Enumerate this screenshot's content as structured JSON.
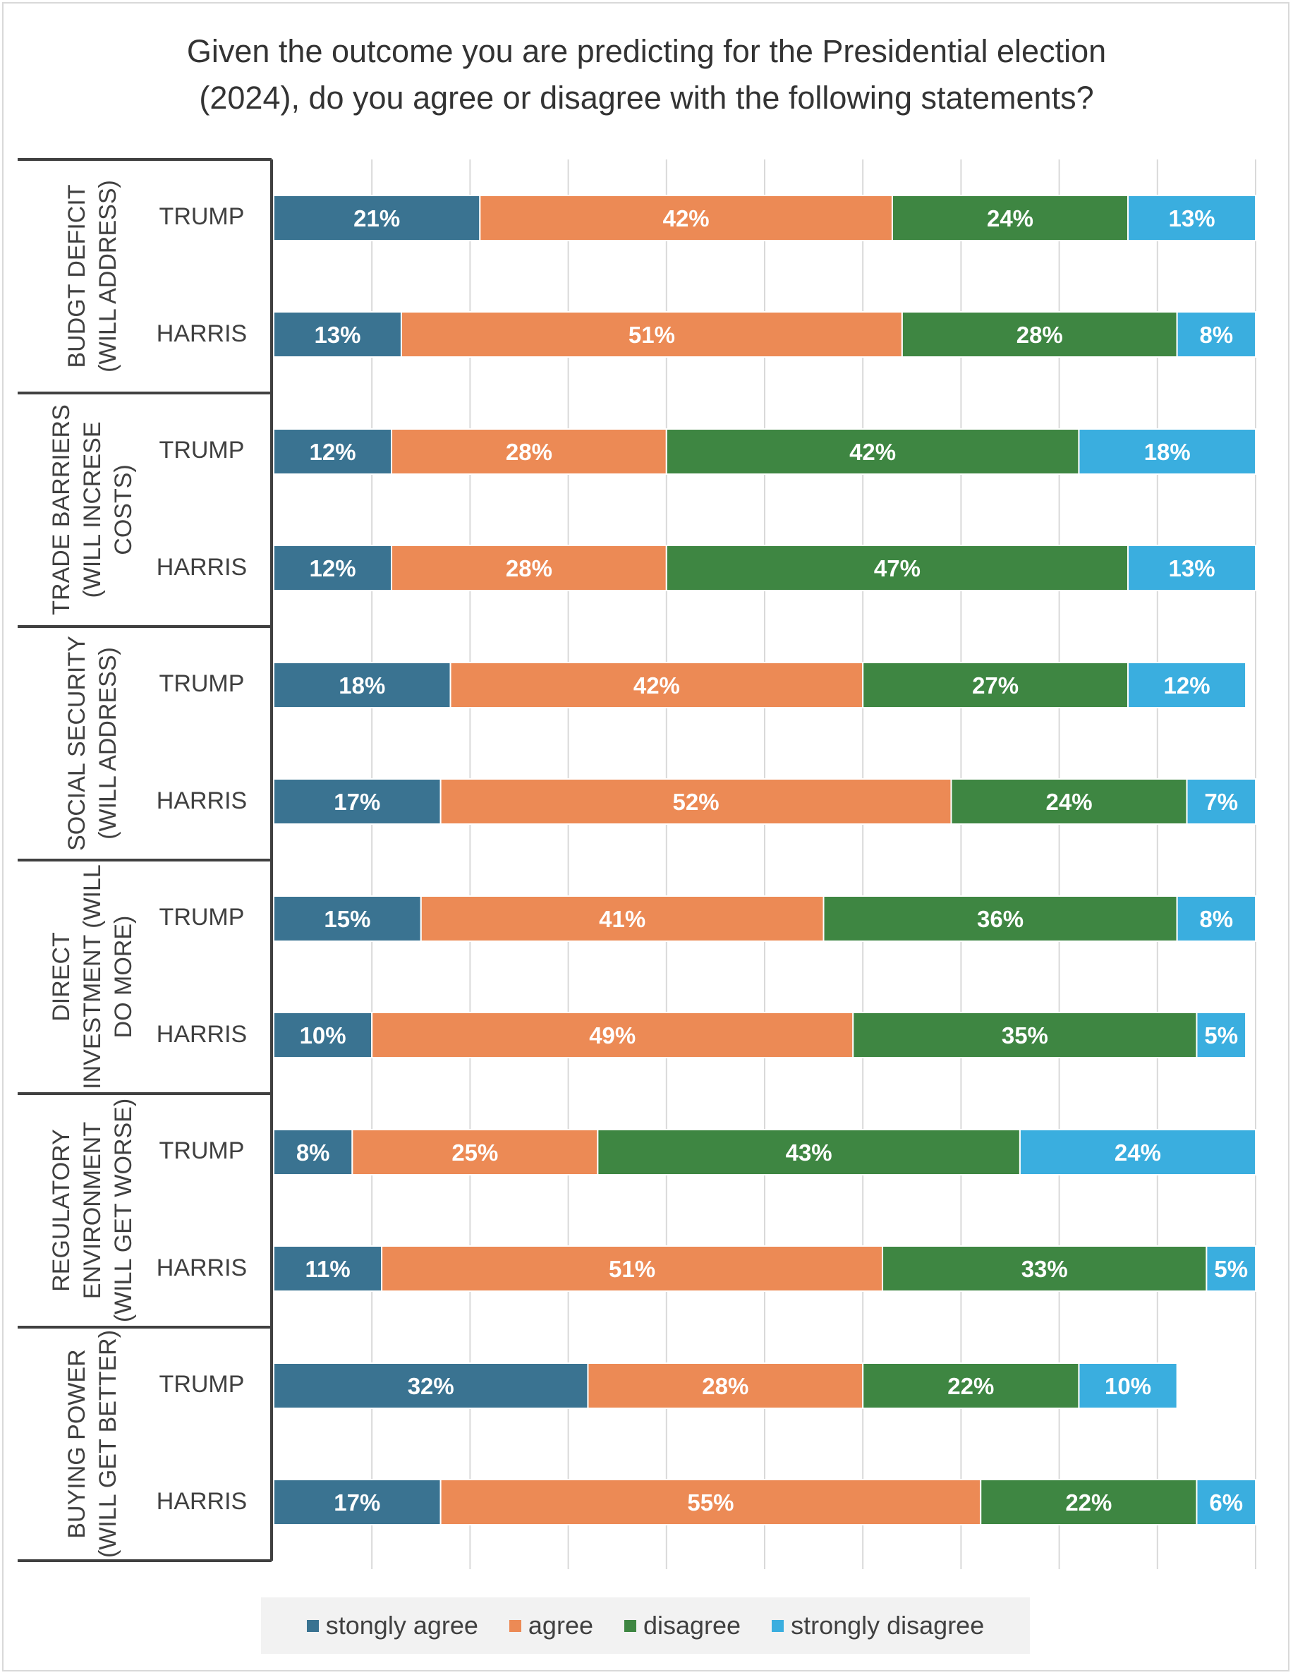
{
  "chart_data": {
    "type": "bar",
    "orientation": "horizontal",
    "stacked": true,
    "title_lines": [
      "Given the outcome you are predicting for the Presidential election",
      "(2024), do you agree or disagree with the following statements?"
    ],
    "xlim": [
      0,
      100
    ],
    "x_gridlines_at": [
      0,
      10,
      20,
      30,
      40,
      50,
      60,
      70,
      80,
      90,
      100
    ],
    "grid": true,
    "legend_position": "bottom",
    "series": [
      {
        "name": "stongly agree",
        "color": "#3a7391"
      },
      {
        "name": "agree",
        "color": "#ec8a55"
      },
      {
        "name": "disagree",
        "color": "#3e8642"
      },
      {
        "name": "strongly disagree",
        "color": "#3aaedf"
      }
    ],
    "groups": [
      {
        "label_lines": [
          "BUDGT DEFICIT",
          "(WILL ADDRESS)"
        ],
        "rows": [
          {
            "label": "TRUMP",
            "values": [
              21,
              42,
              24,
              13
            ]
          },
          {
            "label": "HARRIS",
            "values": [
              13,
              51,
              28,
              8
            ]
          }
        ]
      },
      {
        "label_lines": [
          "TRADE BARRIERS",
          "(WILL INCRESE",
          "COSTS)"
        ],
        "rows": [
          {
            "label": "TRUMP",
            "values": [
              12,
              28,
              42,
              18
            ]
          },
          {
            "label": "HARRIS",
            "values": [
              12,
              28,
              47,
              13
            ]
          }
        ]
      },
      {
        "label_lines": [
          "SOCIAL SECURITY",
          "(WILL ADDRESS)"
        ],
        "rows": [
          {
            "label": "TRUMP",
            "values": [
              18,
              42,
              27,
              12
            ]
          },
          {
            "label": "HARRIS",
            "values": [
              17,
              52,
              24,
              7
            ]
          }
        ]
      },
      {
        "label_lines": [
          "DIRECT",
          "INVESTMENT (WILL",
          "DO MORE)"
        ],
        "rows": [
          {
            "label": "TRUMP",
            "values": [
              15,
              41,
              36,
              8
            ]
          },
          {
            "label": "HARRIS",
            "values": [
              10,
              49,
              35,
              5
            ]
          }
        ]
      },
      {
        "label_lines": [
          "REGULATORY",
          "ENVIRONMENT",
          "(WILL GET WORSE)"
        ],
        "rows": [
          {
            "label": "TRUMP",
            "values": [
              8,
              25,
              43,
              24
            ]
          },
          {
            "label": "HARRIS",
            "values": [
              11,
              51,
              33,
              5
            ]
          }
        ]
      },
      {
        "label_lines": [
          "BUYING POWER",
          "(WILL GET BETTER)"
        ],
        "rows": [
          {
            "label": "TRUMP",
            "values": [
              32,
              28,
              22,
              10
            ]
          },
          {
            "label": "HARRIS",
            "values": [
              17,
              55,
              22,
              6
            ]
          }
        ]
      }
    ]
  }
}
